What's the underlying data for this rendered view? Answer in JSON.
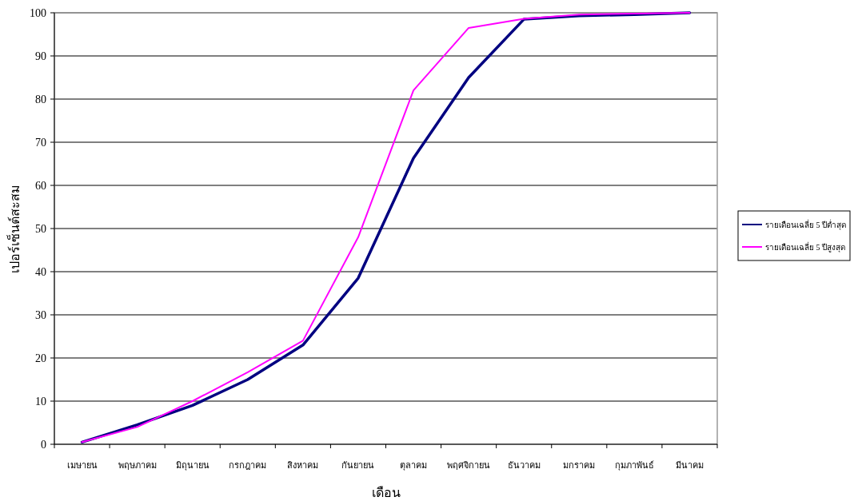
{
  "chart_data": {
    "type": "line",
    "xlabel": "เดือน",
    "ylabel": "เปอร์เซ็นต์สะสม",
    "categories": [
      "เมษายน",
      "พฤษภาคม",
      "มิถุนายน",
      "กรกฎาคม",
      "สิงหาคม",
      "กันยายน",
      "ตุลาคม",
      "พฤศจิกายน",
      "ธันวาคม",
      "มกราคม",
      "กุมภาพันธ์",
      "มีนาคม"
    ],
    "series": [
      {
        "name": "รายเดือนเฉลี่ย 5 ปีต่ำสุด",
        "color": "#000080",
        "values": [
          0.5,
          4.5,
          9,
          15,
          23,
          38.5,
          66.3,
          85,
          98.5,
          99.3,
          99.6,
          100
        ]
      },
      {
        "name": "รายเดือนเฉลี่ย 5 ปีสูงสุด",
        "color": "#ff00ff",
        "values": [
          0.5,
          4,
          10,
          16.7,
          24,
          48,
          82,
          96.5,
          98.6,
          99.6,
          99.8,
          100
        ]
      }
    ],
    "ylim": [
      0,
      100
    ],
    "yticks": [
      0,
      10,
      20,
      30,
      40,
      50,
      60,
      70,
      80,
      90,
      100
    ],
    "grid": "y",
    "legend": "right",
    "marker": "none",
    "line_style": "solid"
  }
}
